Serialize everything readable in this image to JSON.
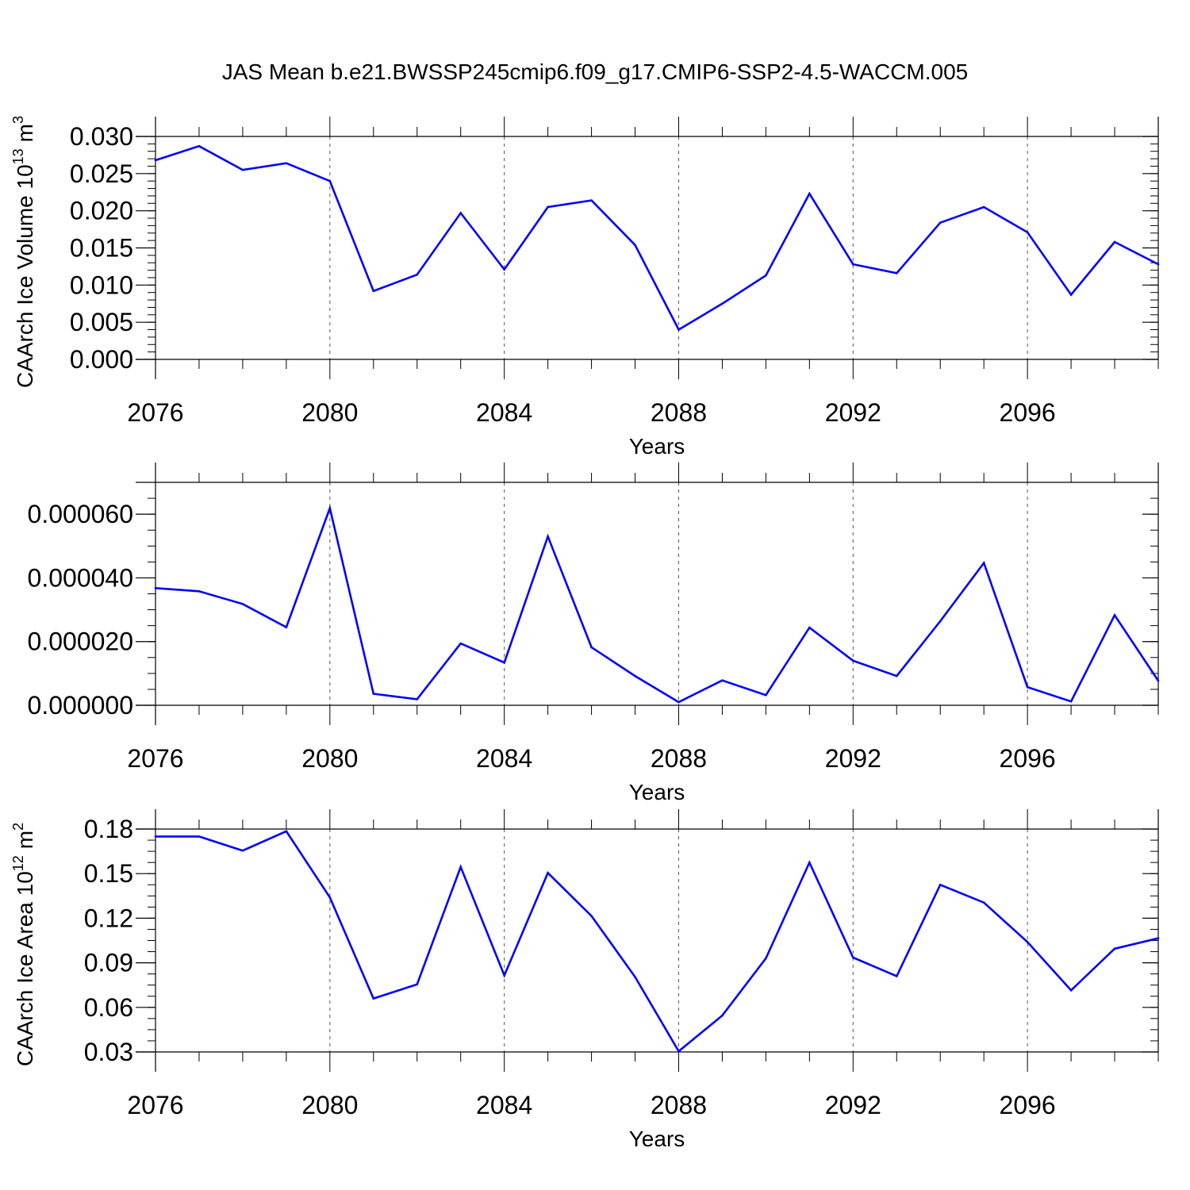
{
  "title": "JAS Mean b.e21.BWSSP245cmip6.f09_g17.CMIP6-SSP2-4.5-WACCM.005",
  "chart_data": [
    {
      "type": "line",
      "xlabel": "Years",
      "ylabel": "CAArch Ice Volume 10",
      "ylabel_sup": "13",
      "ylabel_unit": "m",
      "ylabel_unit_sup": "3",
      "xlim": [
        2076,
        2099
      ],
      "ylim": [
        0.0,
        0.03
      ],
      "x_ticks": [
        2076,
        2080,
        2084,
        2088,
        2092,
        2096
      ],
      "x_tick_labels": [
        "2076",
        "2080",
        "2084",
        "2088",
        "2092",
        "2096"
      ],
      "y_ticks": [
        0.0,
        0.005,
        0.01,
        0.015,
        0.02,
        0.025,
        0.03
      ],
      "y_tick_labels": [
        "0.000",
        "0.005",
        "0.010",
        "0.015",
        "0.020",
        "0.025",
        "0.030"
      ],
      "x_minor_step": 1,
      "y_minor_step": 0.001,
      "grid": "vertical-dashed",
      "line_color": "#0000ff",
      "x": [
        2076,
        2077,
        2078,
        2079,
        2080,
        2081,
        2082,
        2083,
        2084,
        2085,
        2086,
        2087,
        2088,
        2089,
        2090,
        2091,
        2092,
        2093,
        2094,
        2095,
        2096,
        2097,
        2098,
        2099
      ],
      "values": [
        0.0268,
        0.0287,
        0.0255,
        0.0264,
        0.024,
        0.0092,
        0.0114,
        0.0197,
        0.0121,
        0.0205,
        0.0214,
        0.0154,
        0.004,
        0.0075,
        0.0113,
        0.0223,
        0.0128,
        0.0116,
        0.0184,
        0.0205,
        0.0171,
        0.0087,
        0.0158,
        0.0128
      ]
    },
    {
      "type": "line",
      "xlabel": "Years",
      "ylabel": "",
      "xlim": [
        2076,
        2099
      ],
      "ylim": [
        0.0,
        7e-05
      ],
      "x_ticks": [
        2076,
        2080,
        2084,
        2088,
        2092,
        2096
      ],
      "x_tick_labels": [
        "2076",
        "2080",
        "2084",
        "2088",
        "2092",
        "2096"
      ],
      "y_ticks": [
        0.0,
        2e-05,
        4e-05,
        6e-05
      ],
      "y_tick_labels": [
        "0.000000",
        "0.000020",
        "0.000040",
        "0.000060"
      ],
      "x_minor_step": 1,
      "y_minor_step": 5e-06,
      "grid": "vertical-dashed",
      "line_color": "#0000ff",
      "x": [
        2076,
        2077,
        2078,
        2079,
        2080,
        2081,
        2082,
        2083,
        2084,
        2085,
        2086,
        2087,
        2088,
        2089,
        2090,
        2091,
        2092,
        2093,
        2094,
        2095,
        2096,
        2097,
        2098,
        2099
      ],
      "values": [
        3.68e-05,
        3.58e-05,
        3.18e-05,
        2.45e-05,
        6.19e-05,
        3.6e-06,
        1.9e-06,
        1.94e-05,
        1.34e-05,
        5.3e-05,
        1.82e-05,
        9.2e-06,
        1e-06,
        7.8e-06,
        3.2e-06,
        2.44e-05,
        1.4e-05,
        9.2e-06,
        2.64e-05,
        4.47e-05,
        5.7e-06,
        1.2e-06,
        2.83e-05,
        7.7e-06
      ]
    },
    {
      "type": "line",
      "xlabel": "Years",
      "ylabel": "CAArch Ice Area 10",
      "ylabel_sup": "12",
      "ylabel_unit": "m",
      "ylabel_unit_sup": "2",
      "xlim": [
        2076,
        2099
      ],
      "ylim": [
        0.03,
        0.18
      ],
      "x_ticks": [
        2076,
        2080,
        2084,
        2088,
        2092,
        2096
      ],
      "x_tick_labels": [
        "2076",
        "2080",
        "2084",
        "2088",
        "2092",
        "2096"
      ],
      "y_ticks": [
        0.03,
        0.06,
        0.09,
        0.12,
        0.15,
        0.18
      ],
      "y_tick_labels": [
        "0.03",
        "0.06",
        "0.09",
        "0.12",
        "0.15",
        "0.18"
      ],
      "x_minor_step": 1,
      "y_minor_step": 0.0075,
      "grid": "vertical-dashed",
      "line_color": "#0000ff",
      "x": [
        2076,
        2077,
        2078,
        2079,
        2080,
        2081,
        2082,
        2083,
        2084,
        2085,
        2086,
        2087,
        2088,
        2089,
        2090,
        2091,
        2092,
        2093,
        2094,
        2095,
        2096,
        2097,
        2098,
        2099
      ],
      "values": [
        0.175,
        0.175,
        0.1655,
        0.1785,
        0.134,
        0.066,
        0.0755,
        0.1545,
        0.0815,
        0.1505,
        0.1215,
        0.0805,
        0.0305,
        0.0545,
        0.093,
        0.1575,
        0.0935,
        0.081,
        0.1425,
        0.1305,
        0.104,
        0.0715,
        0.0995,
        0.1065
      ]
    }
  ]
}
